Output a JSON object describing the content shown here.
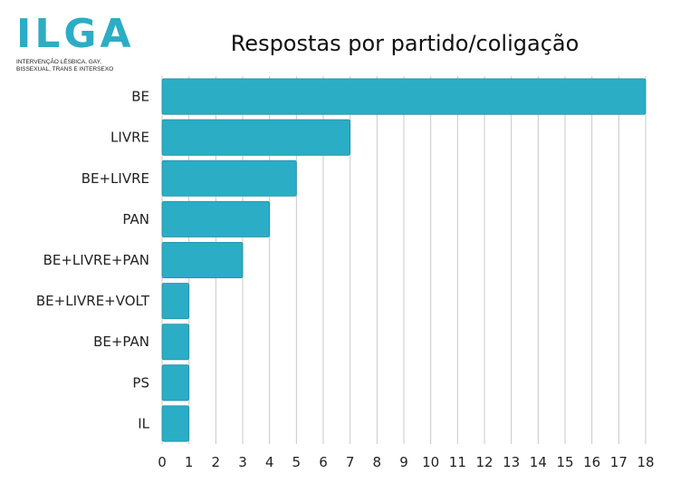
{
  "logo": {
    "mark": "ILGA",
    "tagline_line1": "INTERVENÇÃO LÉSBICA, GAY,",
    "tagline_line2": "BISSEXUAL, TRANS E INTERSEXO"
  },
  "colors": {
    "bar": "#2badc5",
    "bar_stroke": "#1f8fa4",
    "grid": "#c8c8c8",
    "logo": "#2badc5"
  },
  "chart_data": {
    "type": "bar",
    "orientation": "horizontal",
    "title": "Respostas por partido/coligação",
    "categories": [
      "BE",
      "LIVRE",
      "BE+LIVRE",
      "PAN",
      "BE+LIVRE+PAN",
      "BE+LIVRE+VOLT",
      "BE+PAN",
      "PS",
      "IL"
    ],
    "values": [
      18,
      7,
      5,
      4,
      3,
      1,
      1,
      1,
      1
    ],
    "xlim": [
      0,
      18
    ],
    "ticks": [
      "0",
      "1",
      "2",
      "3",
      "4",
      "5",
      "6",
      "7",
      "8",
      "9",
      "10",
      "11",
      "12",
      "13",
      "14",
      "15",
      "16",
      "17",
      "18"
    ],
    "grid": true,
    "legend": "none"
  }
}
